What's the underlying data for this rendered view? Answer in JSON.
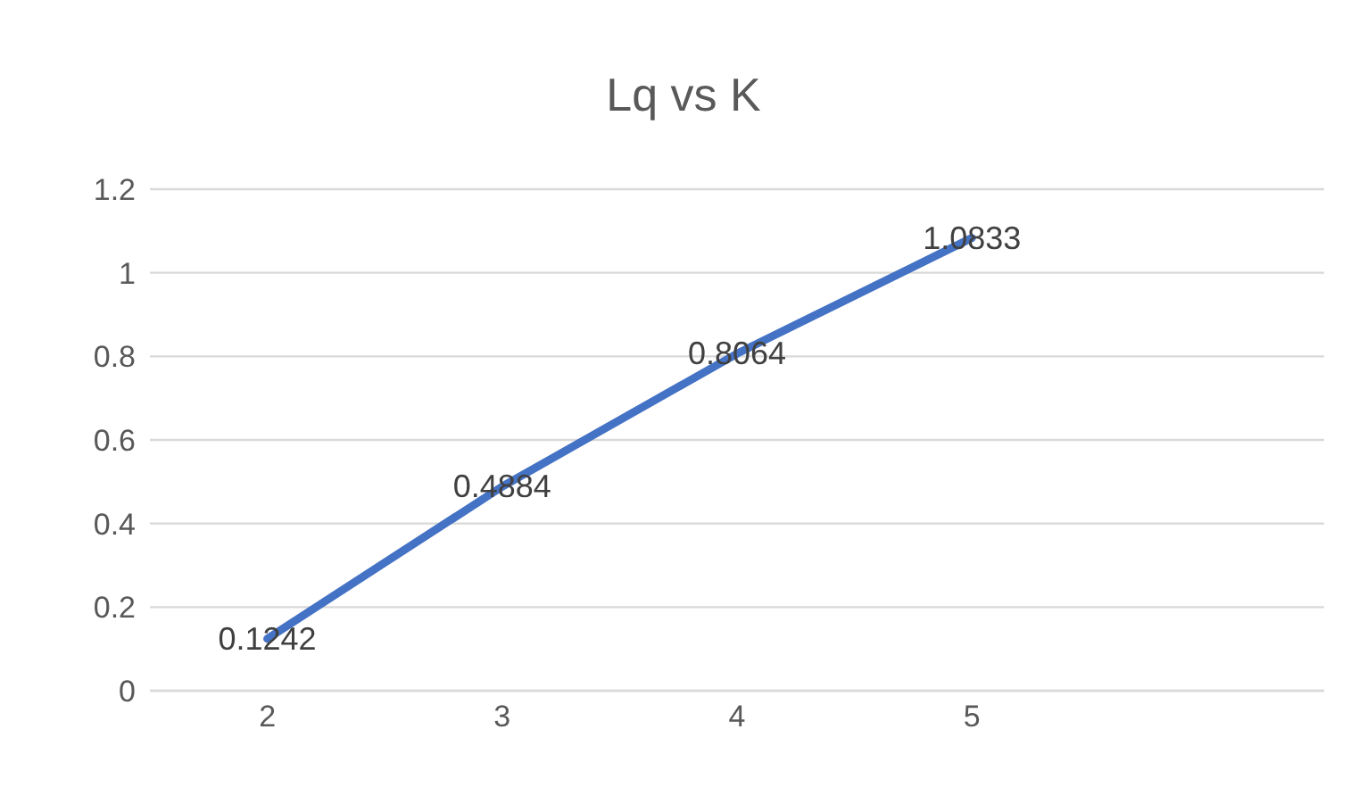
{
  "chart_data": {
    "type": "line",
    "title": "Lq vs K",
    "categories": [
      "2",
      "3",
      "4",
      "5",
      null
    ],
    "series": [
      {
        "color": "#4472c4",
        "values": [
          0.1242,
          0.4884,
          0.8064,
          1.0833,
          null
        ]
      }
    ],
    "ylim": [
      0,
      1.2
    ],
    "yticks": [
      0,
      0.2,
      0.4,
      0.6,
      0.8,
      1,
      1.2
    ],
    "grid": "y",
    "legend": false,
    "marker": "none",
    "line_style": "solid",
    "data_labels": true
  }
}
